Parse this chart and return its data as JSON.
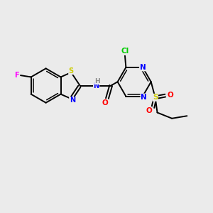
{
  "bg_color": "#ebebeb",
  "bond_color": "#000000",
  "atom_colors": {
    "N": "#0000ff",
    "O": "#ff0000",
    "S_thio": "#cccc00",
    "S_sulfonyl": "#cccc00",
    "F": "#ff00ff",
    "Cl": "#00cc00",
    "H": "#888888",
    "C": "#000000"
  },
  "lw": 1.4,
  "fs": 7.0
}
